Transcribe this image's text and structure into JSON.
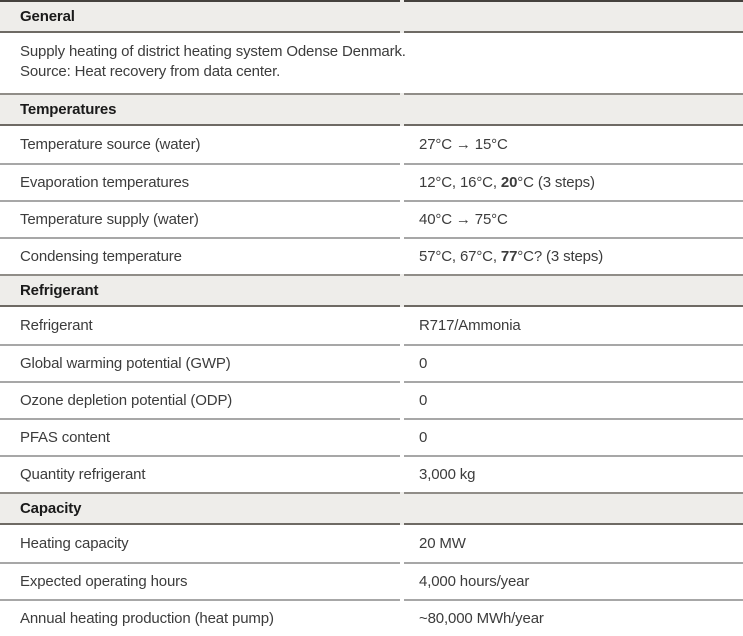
{
  "colors": {
    "band": "#eeedea",
    "border-darkest": "#45423e",
    "border-dark": "#6e6a64",
    "border-mid": "#908d88",
    "border-light": "#a7a7a7",
    "text": "#3c3c3c",
    "header-text": "#1a1a1a"
  },
  "table": {
    "sections": [
      {
        "header": "General",
        "description_lines": [
          "Supply heating of district heating system Odense Denmark.",
          "Source: Heat recovery from data center."
        ]
      },
      {
        "header": "Temperatures",
        "rows": [
          {
            "label": "Temperature source (water)",
            "value": "27°C → 15°C"
          },
          {
            "label": "Evaporation temperatures",
            "value_parts": {
              "pre": "12°C, 16°C, ",
              "bold": "20",
              "suf": "°C (3 steps)"
            }
          },
          {
            "label": "Temperature supply (water)",
            "value": "40°C → 75°C"
          },
          {
            "label": "Condensing temperature",
            "value_parts": {
              "pre": "57°C, 67°C, ",
              "bold": "77",
              "suf": "°C? (3 steps)"
            }
          }
        ]
      },
      {
        "header": "Refrigerant",
        "rows": [
          {
            "label": "Refrigerant",
            "value": "R717/Ammonia"
          },
          {
            "label": "Global warming potential (GWP)",
            "value": "0"
          },
          {
            "label": "Ozone depletion potential (ODP)",
            "value": "0"
          },
          {
            "label": "PFAS content",
            "value": "0"
          },
          {
            "label": "Quantity refrigerant",
            "value": "3,000 kg"
          }
        ]
      },
      {
        "header": "Capacity",
        "rows": [
          {
            "label": "Heating capacity",
            "value": "20 MW"
          },
          {
            "label": "Expected operating hours",
            "value": "4,000 hours/year"
          },
          {
            "label": "Annual heating production (heat pump)",
            "value": "~80,000 MWh/year"
          }
        ]
      }
    ]
  }
}
